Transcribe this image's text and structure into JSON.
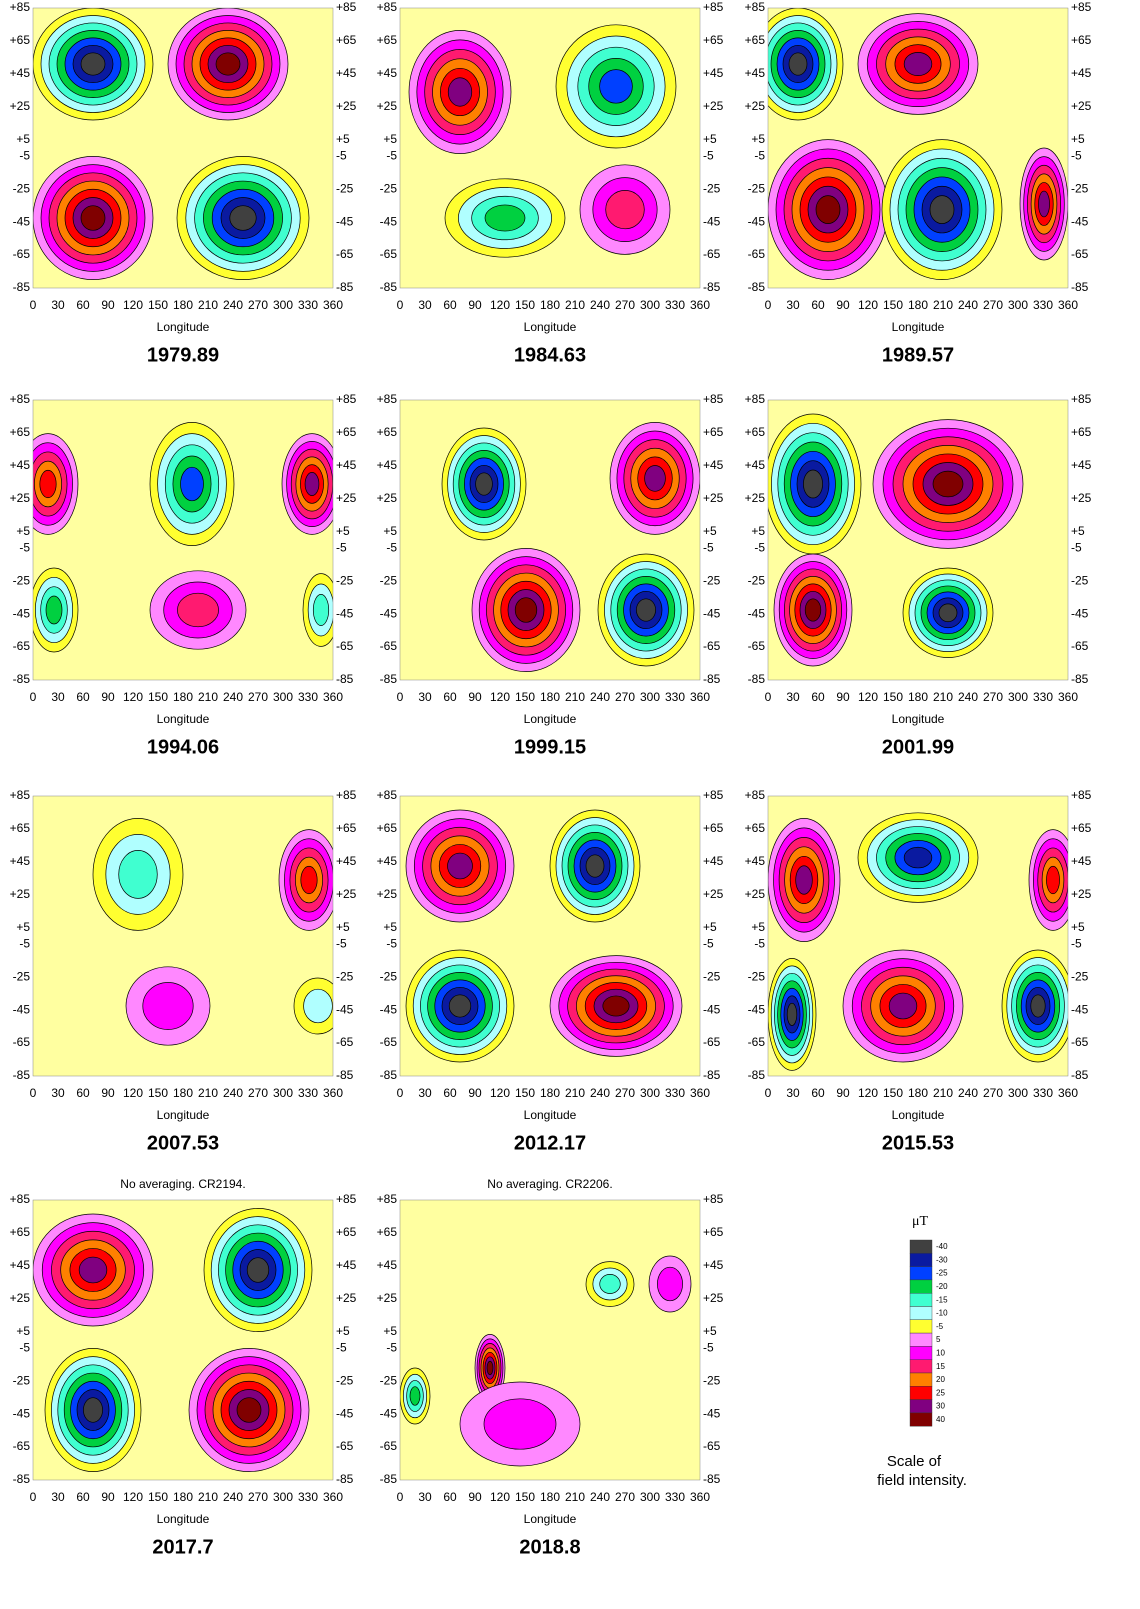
{
  "x_label": "Longitude",
  "y_ticks": [
    "+85",
    "+65",
    "+45",
    "+25",
    "+5",
    "-5",
    "-25",
    "-45",
    "-65",
    "-85"
  ],
  "x_ticks": [
    "0",
    "30",
    "60",
    "90",
    "120",
    "150",
    "180",
    "210",
    "240",
    "270",
    "300",
    "330",
    "360"
  ],
  "panels": [
    {
      "title": "1979.89"
    },
    {
      "title": "1984.63"
    },
    {
      "title": "1989.57"
    },
    {
      "title": "1994.06"
    },
    {
      "title": "1999.15"
    },
    {
      "title": "2001.99"
    },
    {
      "title": "2007.53"
    },
    {
      "title": "2012.17"
    },
    {
      "title": "2015.53"
    },
    {
      "title": "2017.7",
      "note": "No averaging. CR2194."
    },
    {
      "title": "2018.8",
      "note": "No averaging. CR2206."
    }
  ],
  "scale": {
    "unit": "μT",
    "caption": [
      "Scale of",
      "field intensity."
    ],
    "levels": [
      {
        "label": "-40",
        "color": "#404040"
      },
      {
        "label": "-30",
        "color": "#0a1aa0"
      },
      {
        "label": "-25",
        "color": "#0040ff"
      },
      {
        "label": "-20",
        "color": "#00d040"
      },
      {
        "label": "-15",
        "color": "#40ffd0"
      },
      {
        "label": "-10",
        "color": "#b0ffff"
      },
      {
        "label": "-5",
        "color": "#ffff30"
      },
      {
        "label": "5",
        "color": "#ff88ff"
      },
      {
        "label": "10",
        "color": "#ff00ff"
      },
      {
        "label": "15",
        "color": "#ff1a70"
      },
      {
        "label": "20",
        "color": "#ff8000"
      },
      {
        "label": "25",
        "color": "#ff0000"
      },
      {
        "label": "30",
        "color": "#800080"
      },
      {
        "label": "40",
        "color": "#800000"
      }
    ]
  }
}
